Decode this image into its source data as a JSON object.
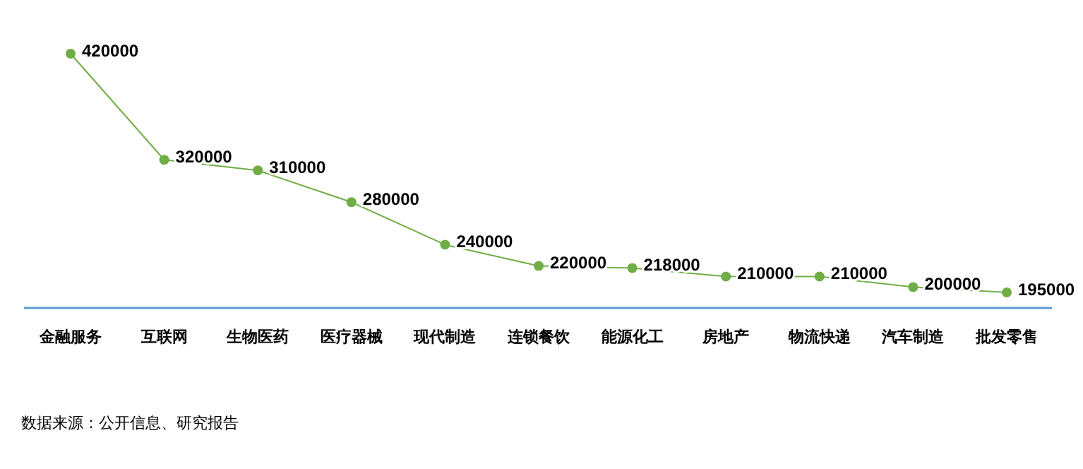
{
  "chart_data": {
    "type": "line",
    "categories": [
      "金融服务",
      "互联网",
      "生物医药",
      "医疗器械",
      "现代制造",
      "连锁餐饮",
      "能源化工",
      "房地产",
      "物流快递",
      "汽车制造",
      "批发零售"
    ],
    "series": [
      {
        "color": "#70ad47",
        "values": [
          420000,
          320000,
          310000,
          280000,
          240000,
          220000,
          218000,
          210000,
          210000,
          200000,
          195000
        ]
      }
    ],
    "data_labels": true,
    "marker": "circle",
    "line_style": "solid",
    "tick_labels": "x",
    "annotations": [
      "数据来源：公开信息、研究报告"
    ]
  }
}
